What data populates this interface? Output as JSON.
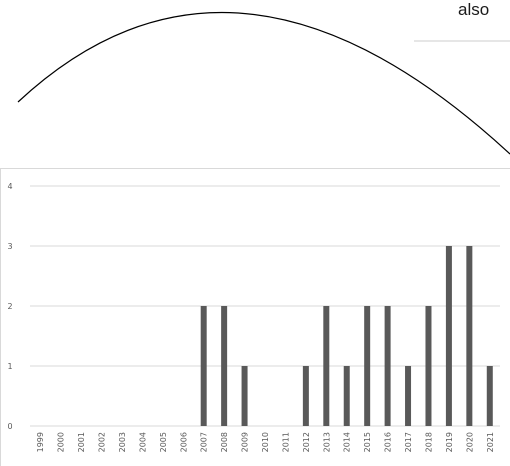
{
  "caption_fragment": "also",
  "chart_data": {
    "type": "bar",
    "title": "",
    "xlabel": "",
    "ylabel": "",
    "categories": [
      "1999",
      "2000",
      "2001",
      "2002",
      "2003",
      "2004",
      "2005",
      "2006",
      "2007",
      "2008",
      "2009",
      "2010",
      "2011",
      "2012",
      "2013",
      "2014",
      "2015",
      "2016",
      "2017",
      "2018",
      "2019",
      "2020",
      "2021"
    ],
    "values": [
      0,
      0,
      0,
      0,
      0,
      0,
      0,
      0,
      2,
      2,
      1,
      0,
      0,
      1,
      2,
      1,
      2,
      2,
      1,
      2,
      3,
      3,
      1
    ],
    "ylim": [
      0,
      4
    ],
    "yticks": [
      0,
      1,
      2,
      3,
      4
    ],
    "grid": true,
    "bar_color": "#595959",
    "grid_color": "#d9d9d9"
  }
}
